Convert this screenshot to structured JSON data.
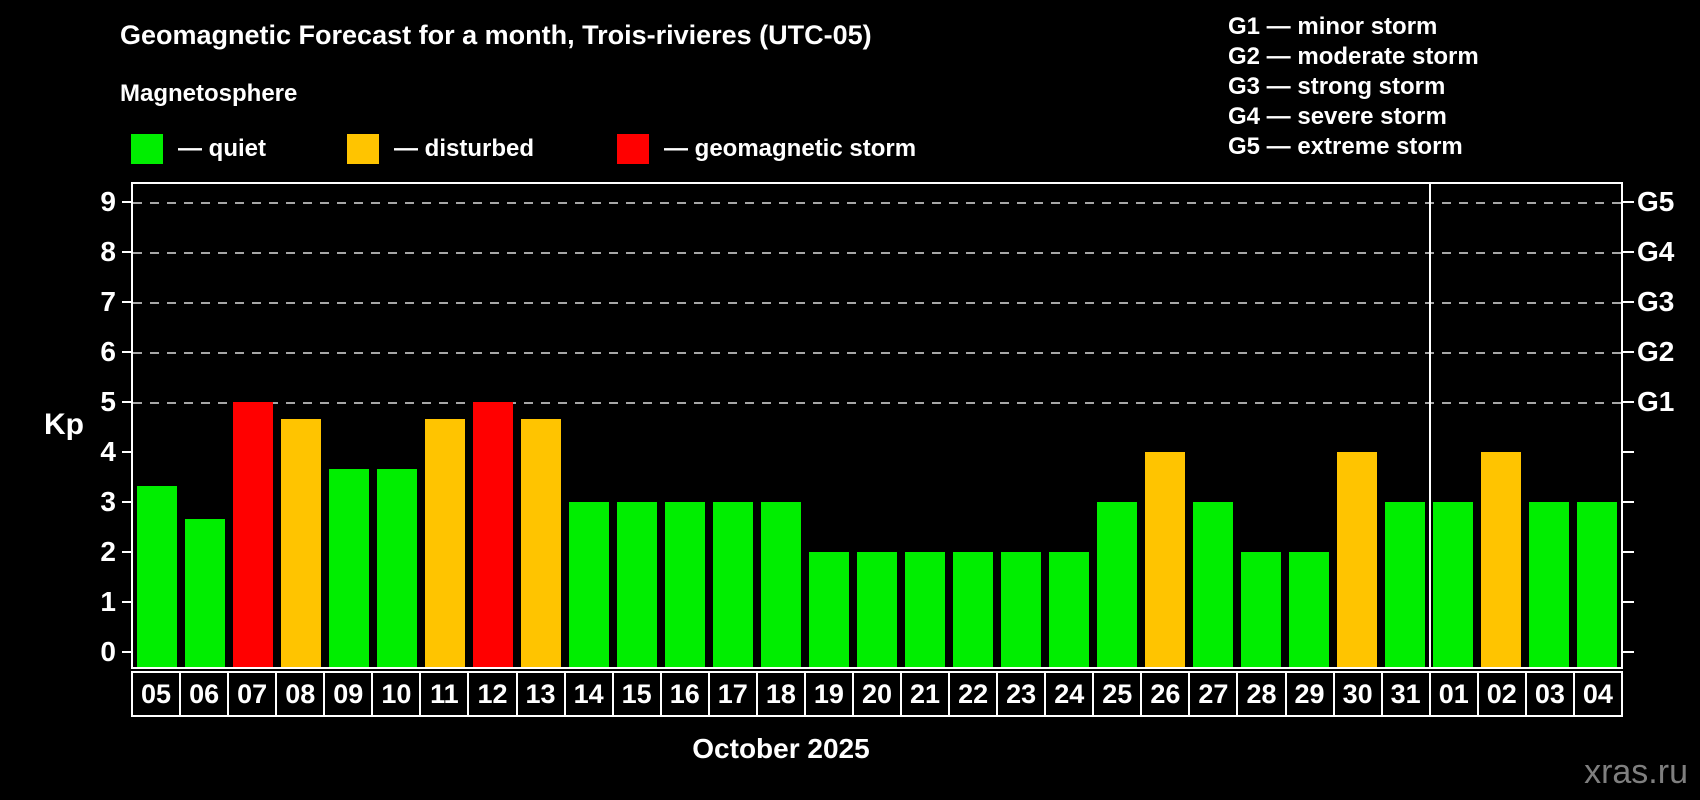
{
  "title": "Geomagnetic Forecast for a month, Trois-rivieres (UTC-05)",
  "subtitle": "Magnetosphere",
  "legend": {
    "items": [
      {
        "key": "quiet",
        "label": "— quiet"
      },
      {
        "key": "disturbed",
        "label": "— disturbed"
      },
      {
        "key": "storm",
        "label": "— geomagnetic storm"
      }
    ]
  },
  "g_legend": [
    "G1 — minor storm",
    "G2 — moderate storm",
    "G3 — strong storm",
    "G4 — severe storm",
    "G5 — extreme storm"
  ],
  "colors": {
    "quiet": "#00ee00",
    "disturbed": "#ffc400",
    "storm": "#ff0000",
    "axis": "#ffffff",
    "grid": "#a6a6a6",
    "watermark": "#7f7f7f"
  },
  "month_label": "October 2025",
  "watermark": "xras.ru",
  "chart_data": {
    "type": "bar",
    "title": "Geomagnetic Forecast for a month, Trois-rivieres (UTC-05)",
    "ylabel": "Kp",
    "ylim": [
      0,
      9
    ],
    "y_ticks": [
      "0",
      "1",
      "2",
      "3",
      "4",
      "5",
      "6",
      "7",
      "8",
      "9"
    ],
    "grid_levels": [
      5,
      6,
      7,
      8,
      9
    ],
    "right_axis_labels": [
      {
        "level": 5,
        "label": "G1"
      },
      {
        "level": 6,
        "label": "G2"
      },
      {
        "level": 7,
        "label": "G3"
      },
      {
        "level": 8,
        "label": "G4"
      },
      {
        "level": 9,
        "label": "G5"
      }
    ],
    "month_boundary_after": 27,
    "days": [
      {
        "day": "05",
        "kp": 3.33,
        "status": "quiet"
      },
      {
        "day": "06",
        "kp": 2.67,
        "status": "quiet"
      },
      {
        "day": "07",
        "kp": 5.0,
        "status": "storm"
      },
      {
        "day": "08",
        "kp": 4.67,
        "status": "disturbed"
      },
      {
        "day": "09",
        "kp": 3.67,
        "status": "quiet"
      },
      {
        "day": "10",
        "kp": 3.67,
        "status": "quiet"
      },
      {
        "day": "11",
        "kp": 4.67,
        "status": "disturbed"
      },
      {
        "day": "12",
        "kp": 5.0,
        "status": "storm"
      },
      {
        "day": "13",
        "kp": 4.67,
        "status": "disturbed"
      },
      {
        "day": "14",
        "kp": 3.0,
        "status": "quiet"
      },
      {
        "day": "15",
        "kp": 3.0,
        "status": "quiet"
      },
      {
        "day": "16",
        "kp": 3.0,
        "status": "quiet"
      },
      {
        "day": "17",
        "kp": 3.0,
        "status": "quiet"
      },
      {
        "day": "18",
        "kp": 3.0,
        "status": "quiet"
      },
      {
        "day": "19",
        "kp": 2.0,
        "status": "quiet"
      },
      {
        "day": "20",
        "kp": 2.0,
        "status": "quiet"
      },
      {
        "day": "21",
        "kp": 2.0,
        "status": "quiet"
      },
      {
        "day": "22",
        "kp": 2.0,
        "status": "quiet"
      },
      {
        "day": "23",
        "kp": 2.0,
        "status": "quiet"
      },
      {
        "day": "24",
        "kp": 2.0,
        "status": "quiet"
      },
      {
        "day": "25",
        "kp": 3.0,
        "status": "quiet"
      },
      {
        "day": "26",
        "kp": 4.0,
        "status": "disturbed"
      },
      {
        "day": "27",
        "kp": 3.0,
        "status": "quiet"
      },
      {
        "day": "28",
        "kp": 2.0,
        "status": "quiet"
      },
      {
        "day": "29",
        "kp": 2.0,
        "status": "quiet"
      },
      {
        "day": "30",
        "kp": 4.0,
        "status": "disturbed"
      },
      {
        "day": "31",
        "kp": 3.0,
        "status": "quiet"
      },
      {
        "day": "01",
        "kp": 3.0,
        "status": "quiet"
      },
      {
        "day": "02",
        "kp": 4.0,
        "status": "disturbed"
      },
      {
        "day": "03",
        "kp": 3.0,
        "status": "quiet"
      },
      {
        "day": "04",
        "kp": 3.0,
        "status": "quiet"
      }
    ]
  }
}
